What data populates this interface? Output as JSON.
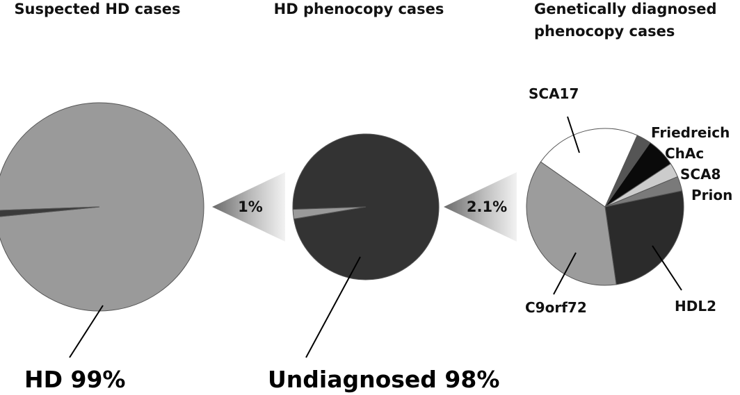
{
  "chart_data": [
    {
      "type": "pie",
      "title": "Suspected HD cases",
      "slices": [
        {
          "label": "HD",
          "value": 99,
          "color": "#9a9a9a"
        },
        {
          "label": "",
          "value": 1,
          "color": "#3a3a3a"
        }
      ],
      "callout": "HD 99%",
      "breakout_label": "1%"
    },
    {
      "type": "pie",
      "title": "HD phenocopy cases",
      "slices": [
        {
          "label": "Undiagnosed",
          "value": 98,
          "color": "#333333"
        },
        {
          "label": "",
          "value": 2.1,
          "color": "#9a9a9a"
        }
      ],
      "callout": "Undiagnosed 98%",
      "breakout_label": "2.1%"
    },
    {
      "type": "pie",
      "title_lines": [
        "Genetically diagnosed",
        "phenocopy cases"
      ],
      "slices": [
        {
          "label": "SCA17",
          "value": 22,
          "color": "#ffffff"
        },
        {
          "label": "",
          "value": 3,
          "color": "#555555"
        },
        {
          "label": "Friedreich",
          "value": 6,
          "color": "#0a0a0a"
        },
        {
          "label": "ChAc",
          "value": 3,
          "color": "#cccccc"
        },
        {
          "label": "SCA8",
          "value": 3,
          "color": "#7a7a7a"
        },
        {
          "label": "Prion",
          "value": 0,
          "color": "#7a7a7a"
        },
        {
          "label": "HDL2",
          "value": 26,
          "color": "#2b2b2b"
        },
        {
          "label": "C9orf72",
          "value": 37,
          "color": "#9c9c9c"
        }
      ]
    }
  ]
}
